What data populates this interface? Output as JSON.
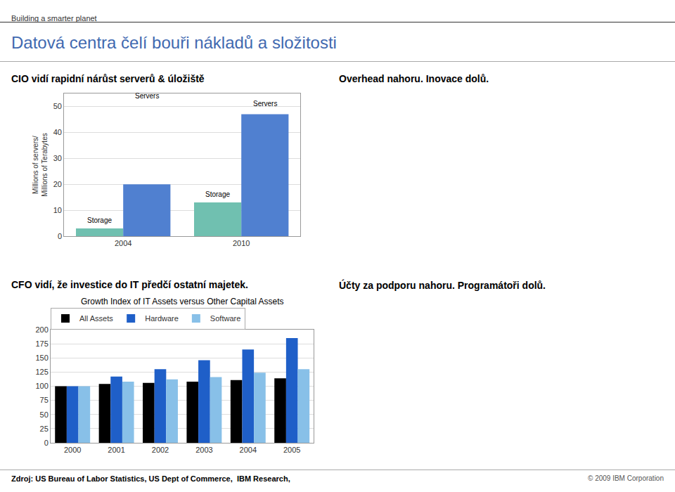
{
  "title": "Datová centra čelí bouři nákladů a složitosti",
  "annotations": [
    "Building a smarter planet",
    "CIO vidí rapidní nárůst serverů & úložiště",
    "Overhead nahoru. Inovace dolů.",
    "CFO vidí, že investice do IT předčí ostatní majetek.",
    "Účty za podporu nahoru. Programátoři dolů.",
    "Zdroj: US Bureau of Labor Statistics, US Dept of Commerce,  IBM Research,",
    "© 2009 IBM Corporation"
  ],
  "chart_data": [
    {
      "type": "bar",
      "title": "Growth Index of IT Assets versus Other Capital Assets",
      "categories": [
        "2000",
        "2001",
        "2002",
        "2003",
        "2004",
        "2005"
      ],
      "series": [
        {
          "name": "All Assets",
          "color": "#000000",
          "values": [
            100,
            104,
            106,
            108,
            111,
            114
          ]
        },
        {
          "name": "Hardware",
          "color": "#1f5fc8",
          "values": [
            100,
            117,
            130,
            146,
            165,
            185
          ]
        },
        {
          "name": "Software",
          "color": "#88c0e8",
          "values": [
            100,
            108,
            112,
            116,
            124,
            130
          ]
        }
      ],
      "ylim": [
        0,
        200
      ],
      "yticks": [
        0,
        25,
        50,
        75,
        100,
        125,
        150,
        175,
        200
      ],
      "grid": true,
      "legend": "upper left"
    },
    {
      "type": "bar",
      "ylabel": "Millions of servers/\nMillions of Terabytes",
      "categories": [
        "2004",
        "2010"
      ],
      "series": [
        {
          "name": "Storage",
          "color": "#70c0b0",
          "values": [
            3,
            13
          ]
        },
        {
          "name": "Servers",
          "color": "#5080d0",
          "values": [
            20,
            47
          ]
        }
      ],
      "annotations": [
        {
          "text": "Servers",
          "x": "2004",
          "y": 52
        },
        {
          "text": "Servers",
          "x": "2010",
          "y": 49
        },
        {
          "text": "Storage",
          "x": "2004",
          "y": 4
        },
        {
          "text": "Storage",
          "x": "2010",
          "y": 14
        }
      ],
      "ylim": [
        0,
        55
      ],
      "yticks": [
        0,
        10,
        20,
        30,
        40,
        50
      ],
      "grid": true
    }
  ]
}
